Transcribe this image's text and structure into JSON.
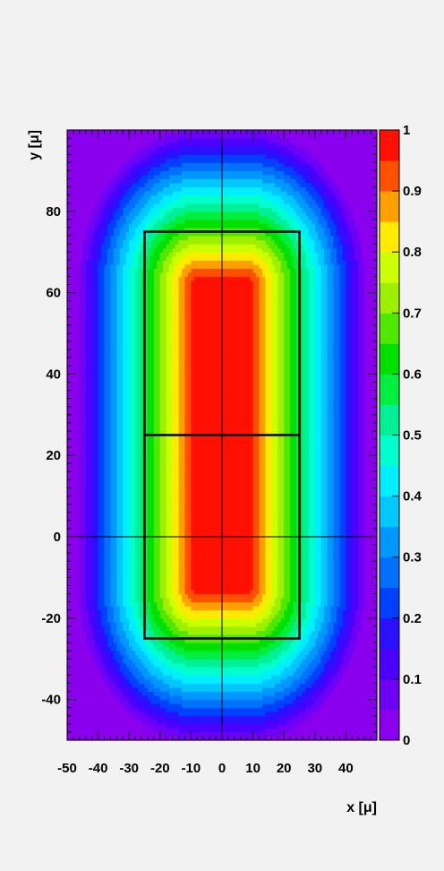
{
  "chart_data": {
    "type": "heatmap",
    "xlabel": "x [μ]",
    "ylabel": "y [μ]",
    "xlim": [
      -50,
      50
    ],
    "ylim": [
      -50,
      100
    ],
    "x_ticks": [
      "-50",
      "-40",
      "-30",
      "-20",
      "-10",
      "0",
      "10",
      "20",
      "30",
      "40"
    ],
    "y_ticks": [
      "-40",
      "-20",
      "0",
      "20",
      "40",
      "60",
      "80"
    ],
    "x_tick_values": [
      -50,
      -40,
      -30,
      -20,
      -10,
      0,
      10,
      20,
      30,
      40
    ],
    "y_tick_values": [
      -40,
      -20,
      0,
      20,
      40,
      60,
      80
    ],
    "colorbar": {
      "range": [
        0,
        1
      ],
      "levels": 20,
      "labels": [
        "0",
        "0.1",
        "0.2",
        "0.3",
        "0.4",
        "0.5",
        "0.6",
        "0.7",
        "0.8",
        "0.9",
        "1"
      ],
      "label_values": [
        0,
        0.1,
        0.2,
        0.3,
        0.4,
        0.5,
        0.6,
        0.7,
        0.8,
        0.9,
        1
      ],
      "palette": [
        "#8a00ee",
        "#6f00f6",
        "#4a00fc",
        "#2a10ff",
        "#0040ff",
        "#0070ff",
        "#0098ff",
        "#00c8ff",
        "#00eeff",
        "#00ffcc",
        "#00f098",
        "#00ee40",
        "#00e000",
        "#50e800",
        "#9ef000",
        "#ccff00",
        "#ffea00",
        "#ffa000",
        "#ff5000",
        "#ff1000"
      ]
    },
    "field": {
      "description_core_x": [
        -8,
        8
      ],
      "description_core_y": [
        -12,
        62
      ],
      "rise_distance": 40
    },
    "overlay": {
      "rect_x": [
        -25,
        25
      ],
      "rect_y": [
        -25,
        75
      ],
      "divider_y": 25,
      "crosshair_x": 0,
      "crosshair_y": 0
    }
  }
}
